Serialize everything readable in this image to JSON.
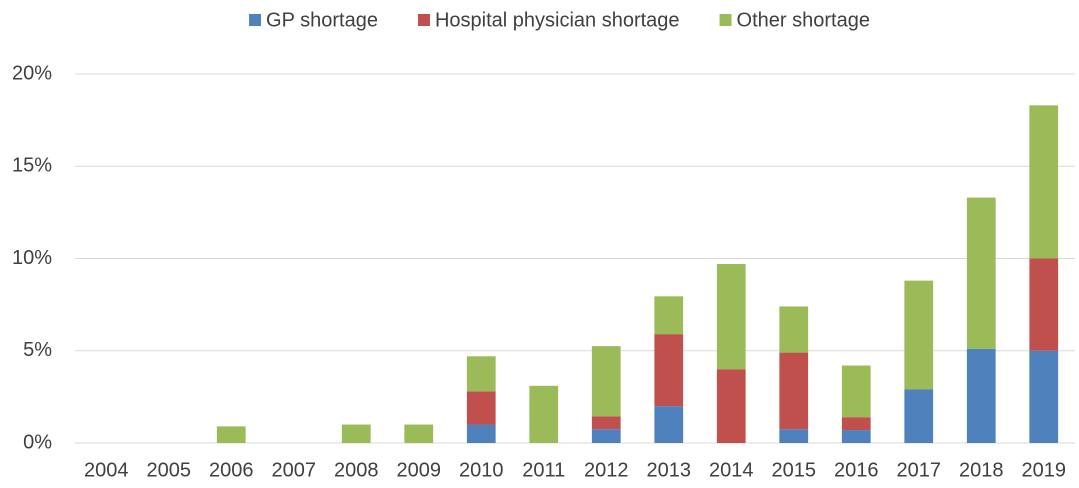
{
  "chart_data": {
    "type": "stacked_bar",
    "categories": [
      "2004",
      "2005",
      "2006",
      "2007",
      "2008",
      "2009",
      "2010",
      "2011",
      "2012",
      "2013",
      "2014",
      "2015",
      "2016",
      "2017",
      "2018",
      "2019"
    ],
    "series": [
      {
        "name": "GP shortage",
        "color": "#4f81bd",
        "values": [
          0,
          0,
          0,
          0,
          0,
          0,
          1.0,
          0,
          0.75,
          2.0,
          0,
          0.75,
          0.7,
          2.9,
          5.1,
          5.0
        ]
      },
      {
        "name": "Hospital physician shortage",
        "color": "#c0504d",
        "values": [
          0,
          0,
          0,
          0,
          0,
          0,
          1.8,
          0,
          0.7,
          3.9,
          4.0,
          4.15,
          0.7,
          0,
          0,
          5.0
        ]
      },
      {
        "name": "Other shortage",
        "color": "#9bbb59",
        "values": [
          0,
          0,
          0.9,
          0,
          1.0,
          1.0,
          1.9,
          3.1,
          3.8,
          2.05,
          5.7,
          2.5,
          2.8,
          5.9,
          8.2,
          8.3
        ]
      }
    ],
    "ylim": [
      0,
      20
    ],
    "yticks": [
      {
        "value": 0,
        "label": "0%"
      },
      {
        "value": 5,
        "label": "5%"
      },
      {
        "value": 10,
        "label": "10%"
      },
      {
        "value": 15,
        "label": "15%"
      },
      {
        "value": 20,
        "label": "20%"
      }
    ],
    "grid": true,
    "legend": "top"
  }
}
